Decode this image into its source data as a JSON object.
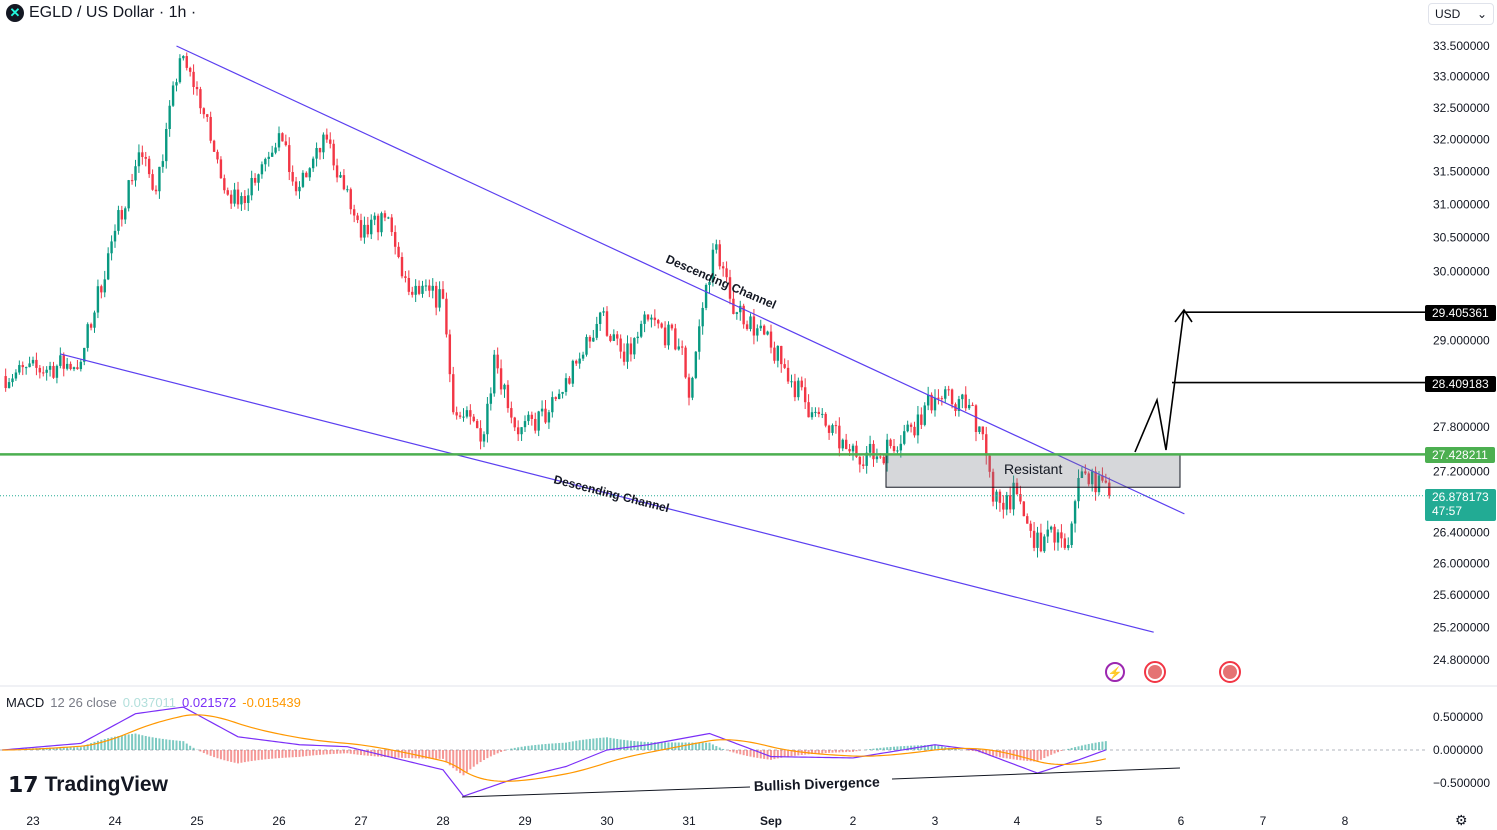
{
  "header": {
    "title": "EGLD / US Dollar · 1h ·",
    "logo_icon": "multiversx-logo-icon",
    "currency": "USD"
  },
  "brand": "TradingView",
  "colors": {
    "up": "#089981",
    "down": "#f23645",
    "channel": "#5b3ff0",
    "support": "#4caf50",
    "last_price": "#22ab94",
    "macd": "#7b2ff7",
    "signal": "#ff9800"
  },
  "price_axis": {
    "scale": "log",
    "labels": [
      "33.500000",
      "33.000000",
      "32.500000",
      "32.000000",
      "31.500000",
      "31.000000",
      "30.500000",
      "30.000000",
      "29.000000",
      "27.800000",
      "27.200000",
      "26.400000",
      "26.000000",
      "25.600000",
      "25.200000",
      "24.800000"
    ]
  },
  "price_tags": {
    "target_high": "29.405361",
    "target_mid": "28.409183",
    "resistance": "27.428211",
    "last": "26.878173",
    "countdown": "47:57"
  },
  "time_axis": {
    "labels": [
      "23",
      "24",
      "25",
      "26",
      "27",
      "28",
      "29",
      "30",
      "31",
      "Sep",
      "2",
      "3",
      "4",
      "5",
      "6",
      "7",
      "8"
    ]
  },
  "annotations": {
    "upper_channel": "Descending Channel",
    "lower_channel": "Descending Channel",
    "zone": "Resistant",
    "divergence": "Bullish Divergence"
  },
  "macd": {
    "label": "MACD",
    "params": "12 26 close",
    "hist_value": "0.037011",
    "macd_value": "0.021572",
    "signal_value": "-0.015439",
    "axis": [
      "0.500000",
      "0.000000",
      "−0.500000"
    ]
  },
  "chart_data": {
    "type": "candlestick",
    "symbol": "EGLD/USD",
    "interval": "1h",
    "yscale": "log",
    "ylim": [
      24.8,
      33.6
    ],
    "waypoints": [
      [
        "Aug 22 15:00",
        28.5
      ],
      [
        "Aug 23 14:00",
        28.7
      ],
      [
        "Aug 24 00:00",
        30.6
      ],
      [
        "Aug 24 07:00",
        31.8
      ],
      [
        "Aug 24 12:00",
        31.2
      ],
      [
        "Aug 24 19:00",
        33.3
      ],
      [
        "Aug 25 00:00",
        32.8
      ],
      [
        "Aug 25 07:00",
        31.4
      ],
      [
        "Aug 25 12:00",
        31.0
      ],
      [
        "Aug 26 00:00",
        32.1
      ],
      [
        "Aug 26 05:00",
        31.2
      ],
      [
        "Aug 26 14:00",
        32.0
      ],
      [
        "Aug 27 00:00",
        30.5
      ],
      [
        "Aug 27 07:00",
        30.8
      ],
      [
        "Aug 27 14:00",
        29.7
      ],
      [
        "Aug 28 00:00",
        29.6
      ],
      [
        "Aug 28 03:00",
        28.0
      ],
      [
        "Aug 28 12:00",
        27.7
      ],
      [
        "Aug 28 15:00",
        28.8
      ],
      [
        "Aug 28 22:00",
        27.7
      ],
      [
        "Aug 29 07:00",
        28.0
      ],
      [
        "Aug 29 17:00",
        28.8
      ],
      [
        "Aug 29 22:00",
        29.4
      ],
      [
        "Aug 30 05:00",
        28.7
      ],
      [
        "Aug 30 12:00",
        29.3
      ],
      [
        "Aug 30 22:00",
        28.9
      ],
      [
        "Aug 31 00:00",
        28.2
      ],
      [
        "Aug 31 05:00",
        29.8
      ],
      [
        "Aug 31 08:00",
        30.4
      ],
      [
        "Aug 31 12:00",
        29.6
      ],
      [
        "Sep 1 00:00",
        28.9
      ],
      [
        "Sep 1 12:00",
        28.0
      ],
      [
        "Sep 1 22:00",
        27.5
      ],
      [
        "Sep 2 07:00",
        27.4
      ],
      [
        "Sep 2 17:00",
        27.8
      ],
      [
        "Sep 3 00:00",
        28.2
      ],
      [
        "Sep 3 10:00",
        28.1
      ],
      [
        "Sep 3 14:00",
        27.7
      ],
      [
        "Sep 3 17:00",
        26.8
      ],
      [
        "Sep 4 00:00",
        26.9
      ],
      [
        "Sep 4 05:00",
        26.2
      ],
      [
        "Sep 4 12:00",
        26.4
      ],
      [
        "Sep 4 14:00",
        26.2
      ],
      [
        "Sep 4 19:00",
        27.2
      ],
      [
        "Sep 5 03:00",
        26.88
      ]
    ],
    "channel_upper": [
      [
        "Aug 24 18:00",
        33.5
      ],
      [
        "Sep 6 01:00",
        26.64
      ]
    ],
    "channel_lower": [
      [
        "Aug 23 08:00",
        28.81
      ],
      [
        "Sep 5 16:00",
        25.14
      ]
    ],
    "resistance_zone": [
      27.43,
      26.99
    ],
    "macd_waypoints": [
      [
        "Aug 22 15:00",
        0.0
      ],
      [
        "Aug 23 14:00",
        0.1
      ],
      [
        "Aug 24 06:00",
        0.55
      ],
      [
        "Aug 24 20:00",
        0.65
      ],
      [
        "Aug 25 12:00",
        0.2
      ],
      [
        "Aug 26 06:00",
        0.08
      ],
      [
        "Aug 26 20:00",
        0.05
      ],
      [
        "Aug 27 12:00",
        -0.15
      ],
      [
        "Aug 28 00:00",
        -0.3
      ],
      [
        "Aug 28 06:00",
        -0.7
      ],
      [
        "Aug 28 20:00",
        -0.45
      ],
      [
        "Aug 29 12:00",
        -0.25
      ],
      [
        "Aug 30 00:00",
        0.0
      ],
      [
        "Aug 30 12:00",
        0.08
      ],
      [
        "Aug 31 06:00",
        0.25
      ],
      [
        "Sep 1 00:00",
        -0.1
      ],
      [
        "Sep 2 00:00",
        -0.12
      ],
      [
        "Sep 3 00:00",
        0.08
      ],
      [
        "Sep 3 12:00",
        0.0
      ],
      [
        "Sep 4 06:00",
        -0.35
      ],
      [
        "Sep 4 18:00",
        -0.15
      ],
      [
        "Sep 5 03:00",
        0.02
      ]
    ]
  }
}
